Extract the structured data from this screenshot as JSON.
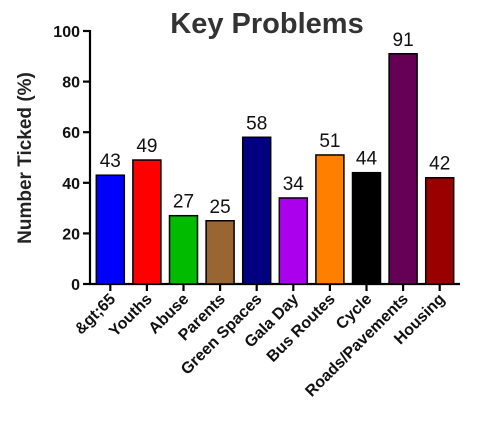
{
  "chart_data": {
    "type": "bar",
    "title": "Key Problems",
    "xlabel": "",
    "ylabel": "Number Ticked (%)",
    "ylim": [
      0,
      100
    ],
    "yticks": [
      0,
      20,
      40,
      60,
      80,
      100
    ],
    "grid": false,
    "legend": "none",
    "categories": [
      "&gt;65",
      "Youths",
      "Abuse",
      "Parents",
      "Green Spaces",
      "Gala Day",
      "Bus Routes",
      "Cycle",
      "Roads/Pavements",
      "Housing"
    ],
    "values": [
      43,
      49,
      27,
      25,
      58,
      34,
      51,
      44,
      91,
      42
    ],
    "data_labels": [
      "43",
      "49",
      "27",
      "25",
      "58",
      "34",
      "51",
      "44",
      "91",
      "42"
    ],
    "colors": [
      "#0000ff",
      "#ff0000",
      "#00bb00",
      "#996633",
      "#000080",
      "#aa00ee",
      "#ff8000",
      "#000000",
      "#660055",
      "#990000"
    ]
  }
}
